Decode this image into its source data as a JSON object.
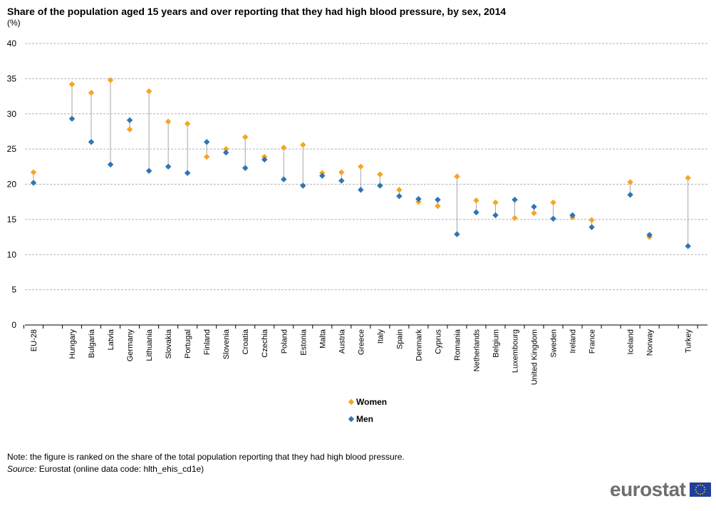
{
  "header": {
    "title": "Share of the population aged 15 years and over reporting that they had high blood pressure, by sex, 2014",
    "unit": "(%)"
  },
  "footer": {
    "note": "Note: the figure is ranked on the share of the total population reporting that they had high blood pressure.",
    "source_label": "Source:",
    "source_text": " Eurostat (online data code: hlth_ehis_cd1e)"
  },
  "brand": {
    "name": "eurostat",
    "flag_icon": "eu-flag-icon"
  },
  "colors": {
    "women": "#f5a623",
    "men": "#2e75b6",
    "connector": "#a6a6a6",
    "grid": "#b3b3b3",
    "axis": "#000000"
  },
  "chart_data": {
    "type": "scatter",
    "title": "Share of the population aged 15 years and over reporting that they had high blood pressure, by sex, 2014",
    "ylabel": "(%)",
    "ylim": [
      0,
      40
    ],
    "yticks": [
      0,
      5,
      10,
      15,
      20,
      25,
      30,
      35,
      40
    ],
    "grid": true,
    "legend_position": "bottom-center",
    "categories": [
      "EU-28",
      "",
      "Hungary",
      "Bulgaria",
      "Latvia",
      "Germany",
      "Lithuania",
      "Slovakia",
      "Portugal",
      "Finland",
      "Slovenia",
      "Croatia",
      "Czechia",
      "Poland",
      "Estonia",
      "Malta",
      "Austria",
      "Greece",
      "Italy",
      "Spain",
      "Denmark",
      "Cyprus",
      "Romania",
      "Netherlands",
      "Belgium",
      "Luxembourg",
      "United Kingdom",
      "Sweden",
      "Ireland",
      "France",
      "",
      "Iceland",
      "Norway",
      "",
      "Turkey"
    ],
    "series": [
      {
        "name": "Women",
        "values": [
          21.7,
          null,
          34.2,
          33.0,
          34.8,
          27.8,
          33.2,
          28.9,
          28.6,
          23.9,
          25.0,
          26.7,
          23.9,
          25.2,
          25.6,
          21.6,
          21.7,
          22.5,
          21.4,
          19.2,
          17.5,
          16.9,
          21.1,
          17.7,
          17.4,
          15.2,
          15.9,
          17.4,
          15.3,
          14.9,
          null,
          20.3,
          12.5,
          null,
          20.9
        ]
      },
      {
        "name": "Men",
        "values": [
          20.2,
          null,
          29.3,
          26.0,
          22.8,
          29.1,
          21.9,
          22.5,
          21.6,
          26.0,
          24.5,
          22.3,
          23.5,
          20.7,
          19.8,
          21.2,
          20.5,
          19.2,
          19.8,
          18.3,
          17.9,
          17.8,
          12.9,
          16.0,
          15.6,
          17.8,
          16.8,
          15.1,
          15.6,
          13.9,
          null,
          18.5,
          12.8,
          null,
          11.2
        ]
      }
    ]
  }
}
